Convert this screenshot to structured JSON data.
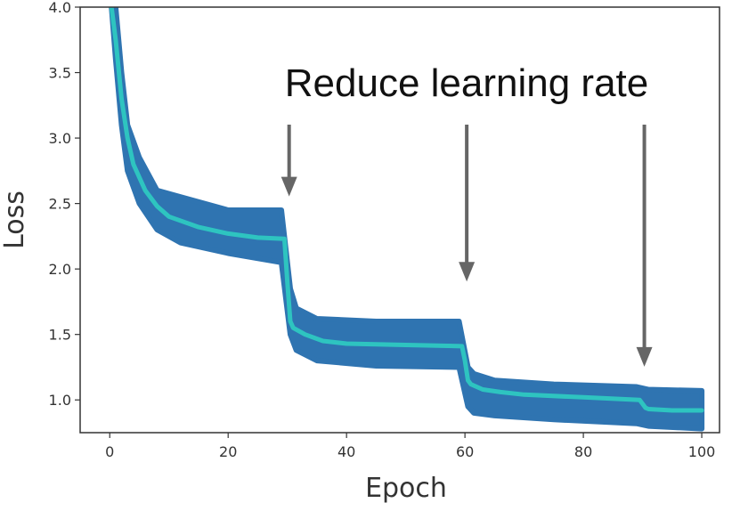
{
  "chart_data": {
    "type": "line",
    "title": "",
    "xlabel": "Epoch",
    "ylabel": "Loss",
    "xlim": [
      -5,
      103
    ],
    "ylim": [
      0.75,
      4.0
    ],
    "xticks": [
      0,
      20,
      40,
      60,
      80,
      100
    ],
    "yticks": [
      1.0,
      1.5,
      2.0,
      2.5,
      3.0,
      3.5,
      4.0
    ],
    "xtick_labels": [
      "0",
      "20",
      "40",
      "60",
      "80",
      "100"
    ],
    "ytick_labels": [
      "1.0",
      "1.5",
      "2.0",
      "2.5",
      "3.0",
      "3.5",
      "4.0"
    ],
    "grid": false,
    "series": [
      {
        "role": "band",
        "color": "#2f74b1",
        "x": [
          0.3,
          1,
          2,
          3,
          5,
          8,
          12,
          20,
          29,
          30.5,
          31.5,
          35,
          45,
          59,
          60.5,
          61.5,
          65,
          75,
          89,
          91,
          100
        ],
        "upper": [
          4.0,
          4.0,
          3.5,
          3.1,
          2.85,
          2.6,
          2.55,
          2.45,
          2.45,
          1.85,
          1.7,
          1.62,
          1.6,
          1.6,
          1.25,
          1.2,
          1.15,
          1.12,
          1.1,
          1.08,
          1.07
        ],
        "lower": [
          4.0,
          3.6,
          3.1,
          2.75,
          2.5,
          2.3,
          2.2,
          2.12,
          2.05,
          1.5,
          1.38,
          1.3,
          1.26,
          1.25,
          0.95,
          0.9,
          0.88,
          0.85,
          0.82,
          0.8,
          0.78
        ]
      },
      {
        "role": "smoothed",
        "color": "#2ec4c0",
        "x": [
          0.3,
          1,
          2,
          3,
          4,
          6,
          8,
          10,
          15,
          20,
          25,
          29.5,
          30,
          30.5,
          31,
          33,
          36,
          40,
          50,
          59.5,
          60,
          60.5,
          61,
          63,
          66,
          70,
          80,
          89.5,
          90,
          90.5,
          91,
          95,
          100
        ],
        "y": [
          4.0,
          3.75,
          3.3,
          3.0,
          2.8,
          2.6,
          2.48,
          2.4,
          2.32,
          2.27,
          2.24,
          2.23,
          1.9,
          1.6,
          1.55,
          1.5,
          1.45,
          1.43,
          1.42,
          1.41,
          1.3,
          1.15,
          1.12,
          1.08,
          1.06,
          1.04,
          1.02,
          1.0,
          0.97,
          0.94,
          0.93,
          0.92,
          0.92
        ]
      }
    ],
    "annotations": [
      {
        "text": "Reduce learning rate",
        "position": "top-right"
      }
    ],
    "arrow_targets_epoch": [
      30,
      60,
      90
    ]
  }
}
